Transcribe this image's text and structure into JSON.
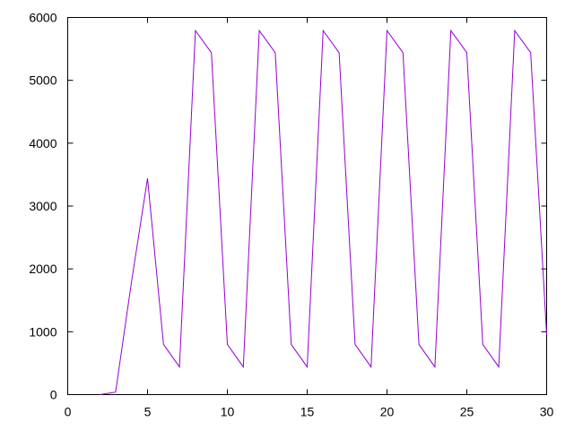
{
  "chart_data": {
    "type": "line",
    "title": "",
    "xlabel": "",
    "ylabel": "",
    "xlim": [
      0,
      30
    ],
    "ylim": [
      0,
      6000
    ],
    "xticks": [
      0,
      5,
      10,
      15,
      20,
      25,
      30
    ],
    "yticks": [
      0,
      1000,
      2000,
      3000,
      4000,
      5000,
      6000
    ],
    "grid": false,
    "legend": "none",
    "series": [
      {
        "color": "#9400d3",
        "x": [
          2,
          3,
          4,
          5,
          6,
          7,
          8,
          9,
          10,
          11,
          12,
          13,
          14,
          15,
          16,
          17,
          18,
          19,
          20,
          21,
          22,
          23,
          24,
          25,
          26,
          27,
          28,
          29,
          30
        ],
        "y": [
          0,
          40,
          1800,
          3440,
          800,
          440,
          5790,
          5440,
          800,
          440,
          5790,
          5440,
          800,
          440,
          5790,
          5440,
          800,
          440,
          5790,
          5440,
          800,
          440,
          5790,
          5440,
          800,
          440,
          5790,
          5440,
          950
        ]
      }
    ]
  }
}
